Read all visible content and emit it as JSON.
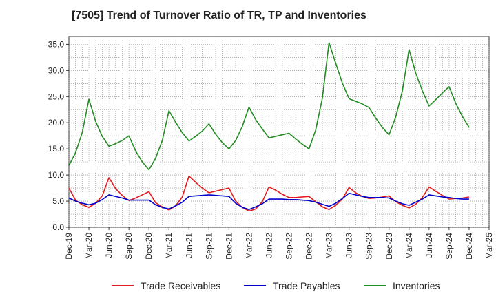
{
  "chart_data": {
    "type": "line",
    "title": "[7505]  Trend of Turnover Ratio of TR, TP and Inventories",
    "xlabel": "",
    "ylabel": "",
    "ylim": [
      0,
      36.5
    ],
    "yticks": [
      "0.0",
      "5.0",
      "10.0",
      "15.0",
      "20.0",
      "25.0",
      "30.0",
      "35.0"
    ],
    "ytick_values": [
      0,
      5,
      10,
      15,
      20,
      25,
      30,
      35
    ],
    "x_tick_labels": [
      "Dec-19",
      "Mar-20",
      "Jun-20",
      "Sep-20",
      "Dec-20",
      "Mar-21",
      "Jun-21",
      "Sep-21",
      "Dec-21",
      "Mar-22",
      "Jun-22",
      "Sep-22",
      "Dec-22",
      "Mar-23",
      "Jun-23",
      "Sep-23",
      "Dec-23",
      "Mar-24",
      "Jun-24",
      "Sep-24",
      "Dec-24",
      "Mar-25"
    ],
    "grid": true,
    "legend_position": "bottom",
    "x": [
      "Dec-19",
      "Jan-20",
      "Feb-20",
      "Mar-20",
      "Apr-20",
      "May-20",
      "Jun-20",
      "Jul-20",
      "Aug-20",
      "Sep-20",
      "Oct-20",
      "Nov-20",
      "Dec-20",
      "Jan-21",
      "Feb-21",
      "Mar-21",
      "Apr-21",
      "May-21",
      "Jun-21",
      "Jul-21",
      "Aug-21",
      "Sep-21",
      "Oct-21",
      "Nov-21",
      "Dec-21",
      "Jan-22",
      "Feb-22",
      "Mar-22",
      "Apr-22",
      "May-22",
      "Jun-22",
      "Jul-22",
      "Aug-22",
      "Sep-22",
      "Oct-22",
      "Nov-22",
      "Dec-22",
      "Jan-23",
      "Feb-23",
      "Mar-23",
      "Apr-23",
      "May-23",
      "Jun-23",
      "Jul-23",
      "Aug-23",
      "Sep-23",
      "Oct-23",
      "Nov-23",
      "Dec-23",
      "Jan-24",
      "Feb-24",
      "Mar-24",
      "Apr-24",
      "May-24",
      "Jun-24",
      "Jul-24",
      "Aug-24",
      "Sep-24",
      "Oct-24",
      "Nov-24",
      "Dec-24"
    ],
    "series": [
      {
        "name": "Trade Receivables",
        "color": "#e31a1c",
        "values": [
          7.5,
          5.2,
          4.3,
          3.8,
          4.6,
          6.0,
          9.5,
          7.4,
          6.1,
          5.1,
          5.6,
          6.2,
          6.8,
          4.7,
          3.9,
          3.3,
          4.1,
          5.8,
          9.8,
          8.6,
          7.5,
          6.6,
          6.9,
          7.2,
          7.5,
          5.0,
          3.8,
          3.1,
          3.5,
          4.9,
          7.7,
          7.1,
          6.3,
          5.7,
          5.7,
          5.8,
          5.9,
          4.9,
          3.9,
          3.4,
          4.2,
          5.4,
          7.6,
          6.6,
          5.9,
          5.5,
          5.6,
          5.8,
          6.0,
          4.9,
          4.2,
          3.7,
          4.4,
          5.7,
          7.7,
          6.9,
          6.1,
          5.4,
          5.5,
          5.6,
          5.8
        ]
      },
      {
        "name": "Trade Payables",
        "color": "#0000cc",
        "values": [
          5.6,
          5.0,
          4.6,
          4.3,
          4.6,
          5.3,
          6.2,
          5.9,
          5.6,
          5.2,
          5.2,
          5.2,
          5.2,
          4.3,
          3.8,
          3.5,
          4.1,
          4.8,
          5.9,
          6.0,
          6.1,
          6.2,
          6.1,
          6.0,
          5.9,
          4.6,
          3.8,
          3.4,
          3.9,
          4.5,
          5.4,
          5.4,
          5.4,
          5.3,
          5.3,
          5.2,
          5.1,
          4.8,
          4.4,
          4.0,
          4.6,
          5.5,
          6.5,
          6.2,
          5.9,
          5.7,
          5.7,
          5.7,
          5.6,
          5.0,
          4.5,
          4.2,
          4.8,
          5.4,
          6.2,
          6.0,
          5.8,
          5.7,
          5.5,
          5.4,
          5.4
        ]
      },
      {
        "name": "Inventories",
        "color": "#228b22",
        "values": [
          11.8,
          14.3,
          18.1,
          24.5,
          20.3,
          17.4,
          15.5,
          16.0,
          16.6,
          17.5,
          14.6,
          12.5,
          11.0,
          13.2,
          16.6,
          22.3,
          20.1,
          18.1,
          16.5,
          17.4,
          18.4,
          19.8,
          17.8,
          16.2,
          15.0,
          16.6,
          19.3,
          23.0,
          20.6,
          18.8,
          17.1,
          17.4,
          17.7,
          18.0,
          16.9,
          15.9,
          15.0,
          18.6,
          24.7,
          35.3,
          31.4,
          27.6,
          24.6,
          24.1,
          23.6,
          22.9,
          20.9,
          19.1,
          17.7,
          21.1,
          26.1,
          34.0,
          29.5,
          26.1,
          23.2,
          24.4,
          25.7,
          26.9,
          23.7,
          21.2,
          19.1
        ]
      }
    ]
  }
}
